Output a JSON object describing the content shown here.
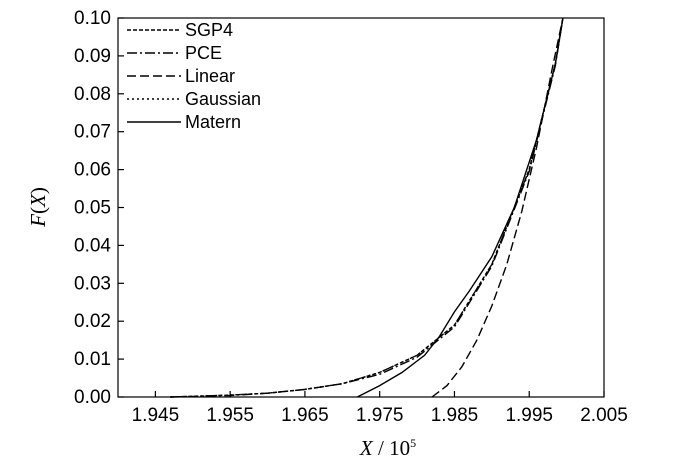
{
  "chart_data": {
    "type": "line",
    "title": "",
    "xlabel": {
      "var": "X",
      "sep": " / ",
      "base": "10",
      "exp": "5"
    },
    "ylabel": {
      "var": "F",
      "open": "(",
      "arg": "X",
      "close": ")"
    },
    "xlim": [
      1.94,
      2.005
    ],
    "ylim": [
      0,
      0.1
    ],
    "xticks": [
      "1.945",
      "1.955",
      "1.965",
      "1.975",
      "1.985",
      "1.995",
      "2.005"
    ],
    "xtick_values": [
      1.945,
      1.955,
      1.965,
      1.975,
      1.985,
      1.995,
      2.005
    ],
    "yticks": [
      "0.00",
      "0.01",
      "0.02",
      "0.03",
      "0.04",
      "0.05",
      "0.06",
      "0.07",
      "0.08",
      "0.09",
      "0.10"
    ],
    "ytick_values": [
      0,
      0.01,
      0.02,
      0.03,
      0.04,
      0.05,
      0.06,
      0.07,
      0.08,
      0.09,
      0.1
    ],
    "grid": false,
    "legend_position": "top-left",
    "series": [
      {
        "name": "SGP4",
        "dash": "4,2",
        "x": [
          1.947,
          1.955,
          1.96,
          1.965,
          1.97,
          1.975,
          1.98,
          1.985,
          1.99,
          1.995,
          1.9985,
          1.9995
        ],
        "y": [
          0,
          0.0005,
          0.001,
          0.002,
          0.0035,
          0.0065,
          0.011,
          0.019,
          0.035,
          0.06,
          0.088,
          0.1
        ]
      },
      {
        "name": "PCE",
        "dash": "10,3,2,3",
        "x": [
          1.947,
          1.955,
          1.96,
          1.965,
          1.97,
          1.975,
          1.98,
          1.985,
          1.99,
          1.995,
          1.9985,
          1.9995
        ],
        "y": [
          0,
          0.0004,
          0.001,
          0.002,
          0.0035,
          0.006,
          0.0105,
          0.0185,
          0.0345,
          0.0595,
          0.0875,
          0.1
        ]
      },
      {
        "name": "Linear",
        "dash": "9,4",
        "x": [
          1.982,
          1.984,
          1.986,
          1.988,
          1.99,
          1.992,
          1.994,
          1.996,
          1.998,
          1.9995
        ],
        "y": [
          0,
          0.003,
          0.008,
          0.015,
          0.024,
          0.035,
          0.049,
          0.066,
          0.086,
          0.1
        ]
      },
      {
        "name": "Gaussian",
        "dash": "2,3",
        "x": [
          1.947,
          1.955,
          1.96,
          1.965,
          1.97,
          1.975,
          1.98,
          1.985,
          1.99,
          1.995,
          1.9985,
          1.9995
        ],
        "y": [
          0,
          0.0005,
          0.001,
          0.002,
          0.0035,
          0.0065,
          0.011,
          0.019,
          0.035,
          0.06,
          0.088,
          0.1
        ]
      },
      {
        "name": "Matern",
        "dash": "",
        "x": [
          1.972,
          1.975,
          1.978,
          1.981,
          1.983,
          1.985,
          1.987,
          1.99,
          1.993,
          1.996,
          1.9985,
          1.9995
        ],
        "y": [
          0,
          0.003,
          0.0065,
          0.011,
          0.016,
          0.0225,
          0.028,
          0.037,
          0.05,
          0.068,
          0.088,
          0.1
        ]
      }
    ]
  }
}
